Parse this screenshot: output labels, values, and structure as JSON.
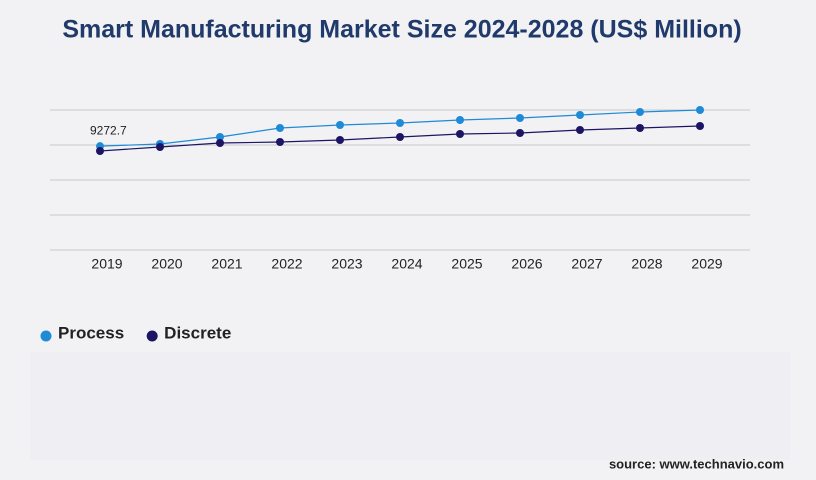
{
  "chart_data": {
    "type": "line",
    "title": "Smart Manufacturing Market Size 2024-2028 (US$ Million)",
    "categories": [
      "2019",
      "2020",
      "2021",
      "2022",
      "2023",
      "2024",
      "2025",
      "2026",
      "2027",
      "2028",
      "2029"
    ],
    "series": [
      {
        "name": "Process",
        "color": "#1f8ad6",
        "values": [
          9272.7,
          9464,
          10089,
          10893,
          11161,
          11339,
          11607,
          11786,
          12054,
          12321,
          12500
        ]
      },
      {
        "name": "Discrete",
        "color": "#1b1563",
        "values": [
          8839,
          9196,
          9554,
          9643,
          9821,
          10089,
          10357,
          10446,
          10714,
          10893,
          11071
        ]
      }
    ],
    "ylim": [
      0,
      12500
    ],
    "source": "source: www.technavio.com"
  }
}
